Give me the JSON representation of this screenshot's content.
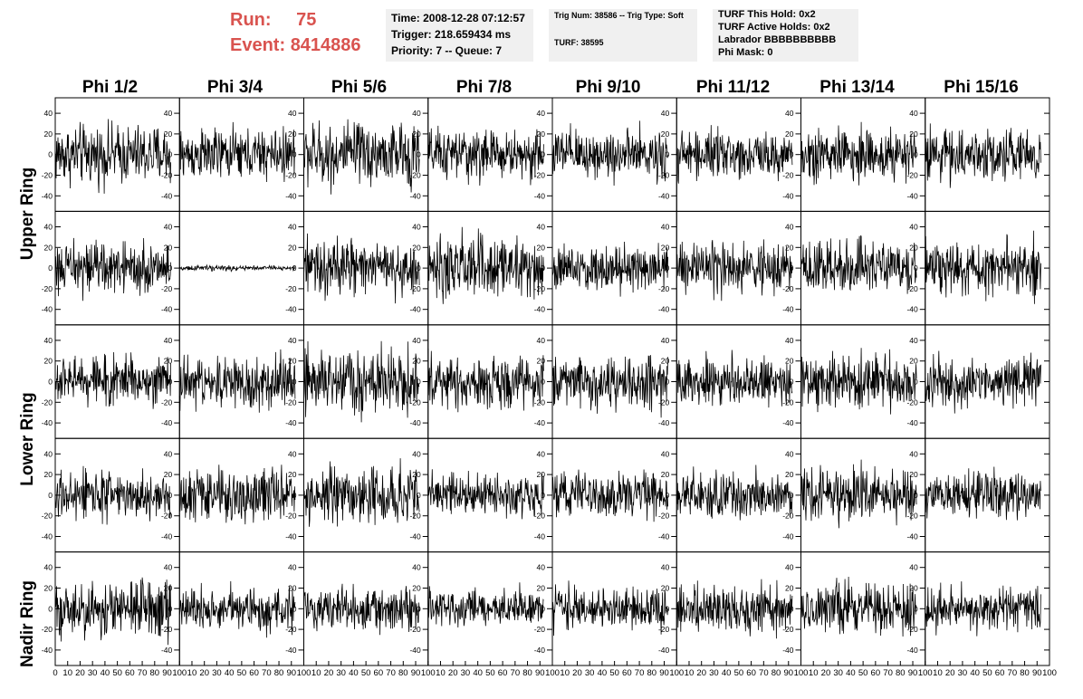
{
  "header": {
    "run_label": "Run:",
    "run_value": "75",
    "event_label": "Event:",
    "event_value": "8414886"
  },
  "info_boxes": [
    {
      "lines": [
        "Time: 2008-12-28 07:12:57",
        "Trigger: 218.659434 ms",
        "Priority: 7 -- Queue: 7"
      ]
    },
    {
      "lines": [
        "Trig Num: 38586 -- Trig Type: Soft",
        "TURF: 38595"
      ]
    },
    {
      "lines": [
        "TURF This Hold: 0x2",
        "TURF Active Holds: 0x2",
        "Labrador BBBBBBBBBB",
        "Phi Mask: 0"
      ]
    }
  ],
  "colors": {
    "accent": "#d9534f",
    "box_bg": "#f0f0f0",
    "trace": "#000000"
  },
  "chart_data": {
    "type": "line",
    "columns": [
      "Phi 1/2",
      "Phi 3/4",
      "Phi 5/6",
      "Phi 7/8",
      "Phi 9/10",
      "Phi 11/12",
      "Phi 13/14",
      "Phi 15/16"
    ],
    "rows": [
      "Upper Ring",
      "Upper Ring",
      "Lower Ring",
      "Lower Ring",
      "Nadir Ring"
    ],
    "row_labels": [
      "Upper Ring",
      "Lower Ring",
      "Nadir Ring"
    ],
    "xlim": [
      0,
      100
    ],
    "ylim": [
      -55,
      55
    ],
    "x_ticks": [
      0,
      10,
      20,
      30,
      40,
      50,
      60,
      70,
      80,
      90,
      100
    ],
    "y_ticks": [
      -40,
      -20,
      0,
      20,
      40
    ],
    "samples_per_trace": 256,
    "trace_x_max": 93,
    "traces": [
      {
        "row": 0,
        "col": 0,
        "amplitude": 14
      },
      {
        "row": 0,
        "col": 1,
        "amplitude": 12
      },
      {
        "row": 0,
        "col": 2,
        "amplitude": 15
      },
      {
        "row": 0,
        "col": 3,
        "amplitude": 12
      },
      {
        "row": 0,
        "col": 4,
        "amplitude": 12
      },
      {
        "row": 0,
        "col": 5,
        "amplitude": 11
      },
      {
        "row": 0,
        "col": 6,
        "amplitude": 13
      },
      {
        "row": 0,
        "col": 7,
        "amplitude": 12
      },
      {
        "row": 1,
        "col": 0,
        "amplitude": 12
      },
      {
        "row": 1,
        "col": 1,
        "amplitude": 1.2
      },
      {
        "row": 1,
        "col": 2,
        "amplitude": 13
      },
      {
        "row": 1,
        "col": 3,
        "amplitude": 15
      },
      {
        "row": 1,
        "col": 4,
        "amplitude": 11
      },
      {
        "row": 1,
        "col": 5,
        "amplitude": 12
      },
      {
        "row": 1,
        "col": 6,
        "amplitude": 12
      },
      {
        "row": 1,
        "col": 7,
        "amplitude": 13
      },
      {
        "row": 2,
        "col": 0,
        "amplitude": 12
      },
      {
        "row": 2,
        "col": 1,
        "amplitude": 12
      },
      {
        "row": 2,
        "col": 2,
        "amplitude": 15
      },
      {
        "row": 2,
        "col": 3,
        "amplitude": 12
      },
      {
        "row": 2,
        "col": 4,
        "amplitude": 12
      },
      {
        "row": 2,
        "col": 5,
        "amplitude": 11
      },
      {
        "row": 2,
        "col": 6,
        "amplitude": 12
      },
      {
        "row": 2,
        "col": 7,
        "amplitude": 12
      },
      {
        "row": 3,
        "col": 0,
        "amplitude": 11
      },
      {
        "row": 3,
        "col": 1,
        "amplitude": 12
      },
      {
        "row": 3,
        "col": 2,
        "amplitude": 13
      },
      {
        "row": 3,
        "col": 3,
        "amplitude": 10
      },
      {
        "row": 3,
        "col": 4,
        "amplitude": 11
      },
      {
        "row": 3,
        "col": 5,
        "amplitude": 11
      },
      {
        "row": 3,
        "col": 6,
        "amplitude": 12
      },
      {
        "row": 3,
        "col": 7,
        "amplitude": 11
      },
      {
        "row": 4,
        "col": 0,
        "amplitude": 14
      },
      {
        "row": 4,
        "col": 1,
        "amplitude": 10
      },
      {
        "row": 4,
        "col": 2,
        "amplitude": 11
      },
      {
        "row": 4,
        "col": 3,
        "amplitude": 9
      },
      {
        "row": 4,
        "col": 4,
        "amplitude": 10
      },
      {
        "row": 4,
        "col": 5,
        "amplitude": 11
      },
      {
        "row": 4,
        "col": 6,
        "amplitude": 12
      },
      {
        "row": 4,
        "col": 7,
        "amplitude": 10
      }
    ]
  }
}
